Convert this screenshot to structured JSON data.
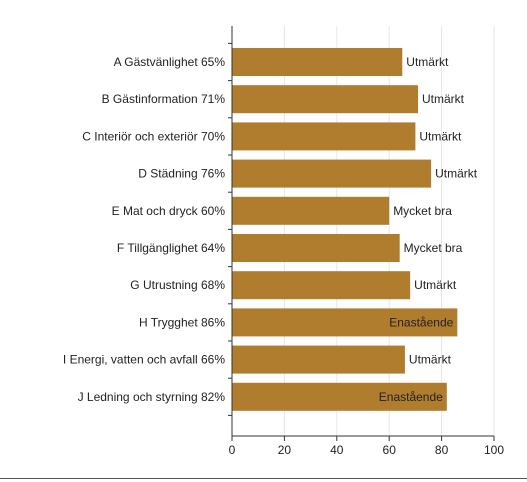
{
  "chart_data": {
    "type": "bar",
    "orientation": "horizontal",
    "categories": [
      "A Gästvänlighet 65%",
      "B Gästinformation 71%",
      "C Interiör och exteriör 70%",
      "D Städning 76%",
      "E Mat och dryck 60%",
      "F Tillgänglighet 64%",
      "G Utrustning 68%",
      "H Trygghet 86%",
      "I Energi, vatten och avfall 66%",
      "J Ledning och styrning 82%"
    ],
    "values": [
      65,
      71,
      70,
      76,
      60,
      64,
      68,
      86,
      66,
      82
    ],
    "data_labels": [
      "Utmärkt",
      "Utmärkt",
      "Utmärkt",
      "Utmärkt",
      "Mycket bra",
      "Mycket bra",
      "Utmärkt",
      "Enastående",
      "Utmärkt",
      "Enastående"
    ],
    "xlim": [
      0,
      100
    ],
    "xticks": [
      0,
      20,
      40,
      60,
      80,
      100
    ],
    "grid": true,
    "bar_color": "#b07d2e"
  }
}
